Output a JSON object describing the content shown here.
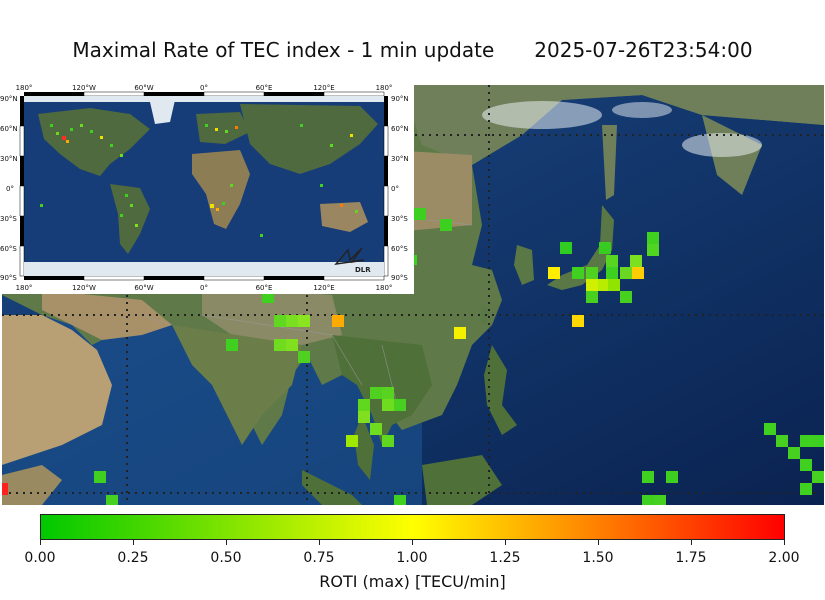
{
  "header": {
    "title": "Maximal Rate of TEC index - 1 min update",
    "timestamp": "2025-07-26T23:54:00"
  },
  "colorbar": {
    "label": "ROTI (max) [TECU/min]",
    "ticks": [
      "0.00",
      "0.25",
      "0.50",
      "0.75",
      "1.00",
      "1.25",
      "1.50",
      "1.75",
      "2.00"
    ],
    "range": [
      0,
      2
    ],
    "colors": [
      "#00c800",
      "#ffff00",
      "#ff0000"
    ]
  },
  "inset": {
    "lon_ticks": [
      "180°",
      "120°W",
      "60°W",
      "0°",
      "60°E",
      "120°E",
      "180°"
    ],
    "lat_ticks": [
      "90°N",
      "60°N",
      "30°N",
      "0°",
      "30°S",
      "60°S",
      "90°S"
    ],
    "logo_text": "DLR"
  },
  "colors": {
    "ocean_deep": "#0d2a5c",
    "ocean_mid": "#1c4f8c",
    "land_green": "#5f7a45",
    "land_desert": "#b09a72",
    "ice": "#d8e8f0"
  }
}
